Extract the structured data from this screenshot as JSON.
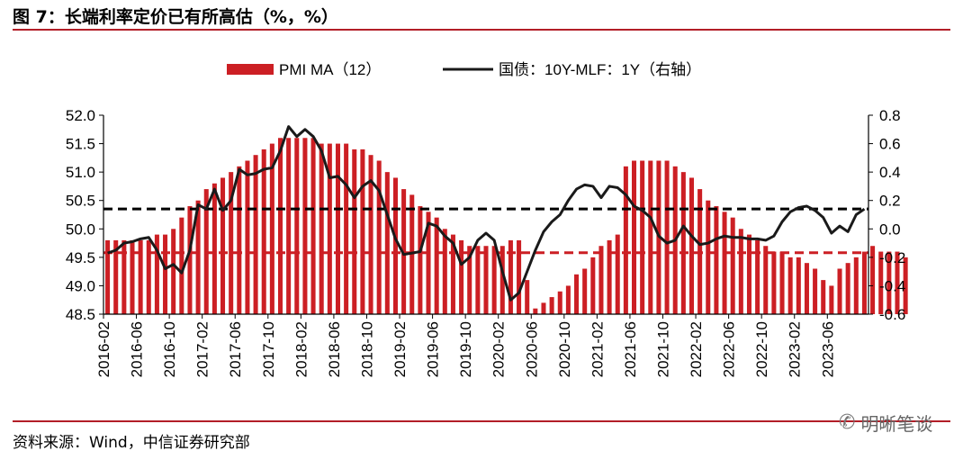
{
  "figure": {
    "title": "图 7：长端利率定价已有所高估（%，%）",
    "source": "资料来源：Wind，中信证券研究部",
    "watermark": "明晰笔谈",
    "watermark_icon": "wechat-icon"
  },
  "colors": {
    "bar": "#cc1f24",
    "line": "#1a1a1a",
    "black_dash": "#000000",
    "red_dash": "#cc1f24",
    "rule": "#b21e28"
  },
  "chart_data": {
    "type": "bar",
    "legend": [
      {
        "label": "PMI MA（12）",
        "kind": "bar"
      },
      {
        "label": "国债：10Y-MLF：1Y（右轴）",
        "kind": "line"
      }
    ],
    "legend_position": "top",
    "x_tick_labels": [
      "2016-02",
      "2016-06",
      "2016-10",
      "2017-02",
      "2017-06",
      "2017-10",
      "2018-02",
      "2018-06",
      "2018-10",
      "2019-02",
      "2019-06",
      "2019-10",
      "2020-02",
      "2020-06",
      "2020-10",
      "2021-02",
      "2021-06",
      "2021-10",
      "2022-02",
      "2022-06",
      "2022-10",
      "2023-02",
      "2023-06"
    ],
    "y_left": {
      "range": [
        48.5,
        52.0
      ],
      "ticks": [
        "48.5",
        "49.0",
        "49.5",
        "50.0",
        "50.5",
        "51.0",
        "51.5",
        "52.0"
      ]
    },
    "y_right": {
      "range": [
        -0.6,
        0.8
      ],
      "ticks": [
        "-0.6",
        "-0.4",
        "-0.2",
        "0.0",
        "0.2",
        "0.4",
        "0.6",
        "0.8"
      ]
    },
    "grid": false,
    "series": [
      {
        "name": "PMI MA（12）",
        "axis": "left",
        "kind": "bar",
        "start_month": "2016-02",
        "values": [
          49.8,
          49.8,
          49.8,
          49.8,
          49.8,
          49.8,
          49.9,
          49.9,
          50.0,
          50.2,
          50.4,
          50.5,
          50.7,
          50.8,
          50.9,
          51.0,
          51.1,
          51.2,
          51.3,
          51.4,
          51.5,
          51.6,
          51.6,
          51.6,
          51.6,
          51.6,
          51.5,
          51.5,
          51.5,
          51.5,
          51.4,
          51.4,
          51.3,
          51.2,
          51.0,
          50.9,
          50.7,
          50.6,
          50.4,
          50.3,
          50.2,
          50.0,
          49.9,
          49.8,
          49.7,
          49.7,
          49.7,
          49.7,
          49.7,
          49.8,
          49.8,
          49.1,
          48.6,
          48.7,
          48.8,
          48.9,
          49.0,
          49.2,
          49.3,
          49.5,
          49.7,
          49.8,
          49.9,
          51.1,
          51.2,
          51.2,
          51.2,
          51.2,
          51.2,
          51.1,
          51.0,
          50.9,
          50.7,
          50.5,
          50.4,
          50.3,
          50.2,
          50.0,
          49.9,
          49.8,
          49.7,
          49.6,
          49.6,
          49.5,
          49.5,
          49.4,
          49.3,
          49.1,
          49.0,
          49.3,
          49.4,
          49.5,
          49.6,
          49.7,
          49.6,
          49.6,
          49.6,
          49.5
        ]
      },
      {
        "name": "国债：10Y-MLF：1Y（右轴）",
        "axis": "right",
        "kind": "line",
        "points": [
          [
            "2016-02",
            -0.17
          ],
          [
            "2016-03",
            -0.15
          ],
          [
            "2016-04",
            -0.1
          ],
          [
            "2016-05",
            -0.09
          ],
          [
            "2016-06",
            -0.07
          ],
          [
            "2016-07",
            -0.06
          ],
          [
            "2016-08",
            -0.15
          ],
          [
            "2016-09",
            -0.28
          ],
          [
            "2016-10",
            -0.25
          ],
          [
            "2016-11",
            -0.31
          ],
          [
            "2016-12",
            -0.15
          ],
          [
            "2017-01",
            0.17
          ],
          [
            "2017-02",
            0.14
          ],
          [
            "2017-03",
            0.28
          ],
          [
            "2017-04",
            0.13
          ],
          [
            "2017-05",
            0.2
          ],
          [
            "2017-06",
            0.42
          ],
          [
            "2017-07",
            0.38
          ],
          [
            "2017-08",
            0.39
          ],
          [
            "2017-09",
            0.42
          ],
          [
            "2017-10",
            0.43
          ],
          [
            "2017-11",
            0.55
          ],
          [
            "2017-12",
            0.72
          ],
          [
            "2018-01",
            0.65
          ],
          [
            "2018-02",
            0.7
          ],
          [
            "2018-03",
            0.65
          ],
          [
            "2018-04",
            0.55
          ],
          [
            "2018-05",
            0.36
          ],
          [
            "2018-06",
            0.37
          ],
          [
            "2018-07",
            0.31
          ],
          [
            "2018-08",
            0.22
          ],
          [
            "2018-09",
            0.3
          ],
          [
            "2018-10",
            0.34
          ],
          [
            "2018-11",
            0.27
          ],
          [
            "2018-12",
            0.1
          ],
          [
            "2019-01",
            -0.07
          ],
          [
            "2019-02",
            -0.18
          ],
          [
            "2019-03",
            -0.17
          ],
          [
            "2019-04",
            -0.16
          ],
          [
            "2019-05",
            0.04
          ],
          [
            "2019-06",
            0.02
          ],
          [
            "2019-07",
            -0.05
          ],
          [
            "2019-08",
            -0.1
          ],
          [
            "2019-09",
            -0.25
          ],
          [
            "2019-10",
            -0.2
          ],
          [
            "2019-11",
            -0.08
          ],
          [
            "2019-12",
            -0.03
          ],
          [
            "2020-01",
            -0.08
          ],
          [
            "2020-02",
            -0.3
          ],
          [
            "2020-03",
            -0.5
          ],
          [
            "2020-04",
            -0.45
          ],
          [
            "2020-05",
            -0.3
          ],
          [
            "2020-06",
            -0.15
          ],
          [
            "2020-07",
            -0.02
          ],
          [
            "2020-08",
            0.05
          ],
          [
            "2020-09",
            0.1
          ],
          [
            "2020-10",
            0.2
          ],
          [
            "2020-11",
            0.28
          ],
          [
            "2020-12",
            0.31
          ],
          [
            "2021-01",
            0.3
          ],
          [
            "2021-02",
            0.22
          ],
          [
            "2021-03",
            0.3
          ],
          [
            "2021-04",
            0.29
          ],
          [
            "2021-05",
            0.24
          ],
          [
            "2021-06",
            0.16
          ],
          [
            "2021-07",
            0.13
          ],
          [
            "2021-08",
            0.08
          ],
          [
            "2021-09",
            -0.05
          ],
          [
            "2021-10",
            -0.1
          ],
          [
            "2021-11",
            -0.08
          ],
          [
            "2021-12",
            0.02
          ],
          [
            "2022-01",
            -0.05
          ],
          [
            "2022-02",
            -0.11
          ],
          [
            "2022-03",
            -0.1
          ],
          [
            "2022-04",
            -0.07
          ],
          [
            "2022-05",
            -0.05
          ],
          [
            "2022-06",
            -0.06
          ],
          [
            "2022-07",
            -0.06
          ],
          [
            "2022-08",
            -0.07
          ],
          [
            "2022-09",
            -0.07
          ],
          [
            "2022-10",
            -0.08
          ],
          [
            "2022-11",
            -0.05
          ],
          [
            "2022-12",
            0.05
          ],
          [
            "2023-01",
            0.12
          ],
          [
            "2023-02",
            0.15
          ],
          [
            "2023-03",
            0.16
          ],
          [
            "2023-04",
            0.13
          ],
          [
            "2023-05",
            0.08
          ],
          [
            "2023-06",
            -0.03
          ],
          [
            "2023-07",
            0.02
          ],
          [
            "2023-08",
            -0.02
          ],
          [
            "2023-09",
            0.1
          ],
          [
            "2023-10",
            0.14
          ]
        ]
      }
    ],
    "reference_lines": [
      {
        "axis": "right",
        "value": 0.14,
        "color": "black",
        "style": "dashed"
      },
      {
        "axis": "left",
        "value": 49.58,
        "color": "red",
        "style": "dashed"
      }
    ]
  }
}
